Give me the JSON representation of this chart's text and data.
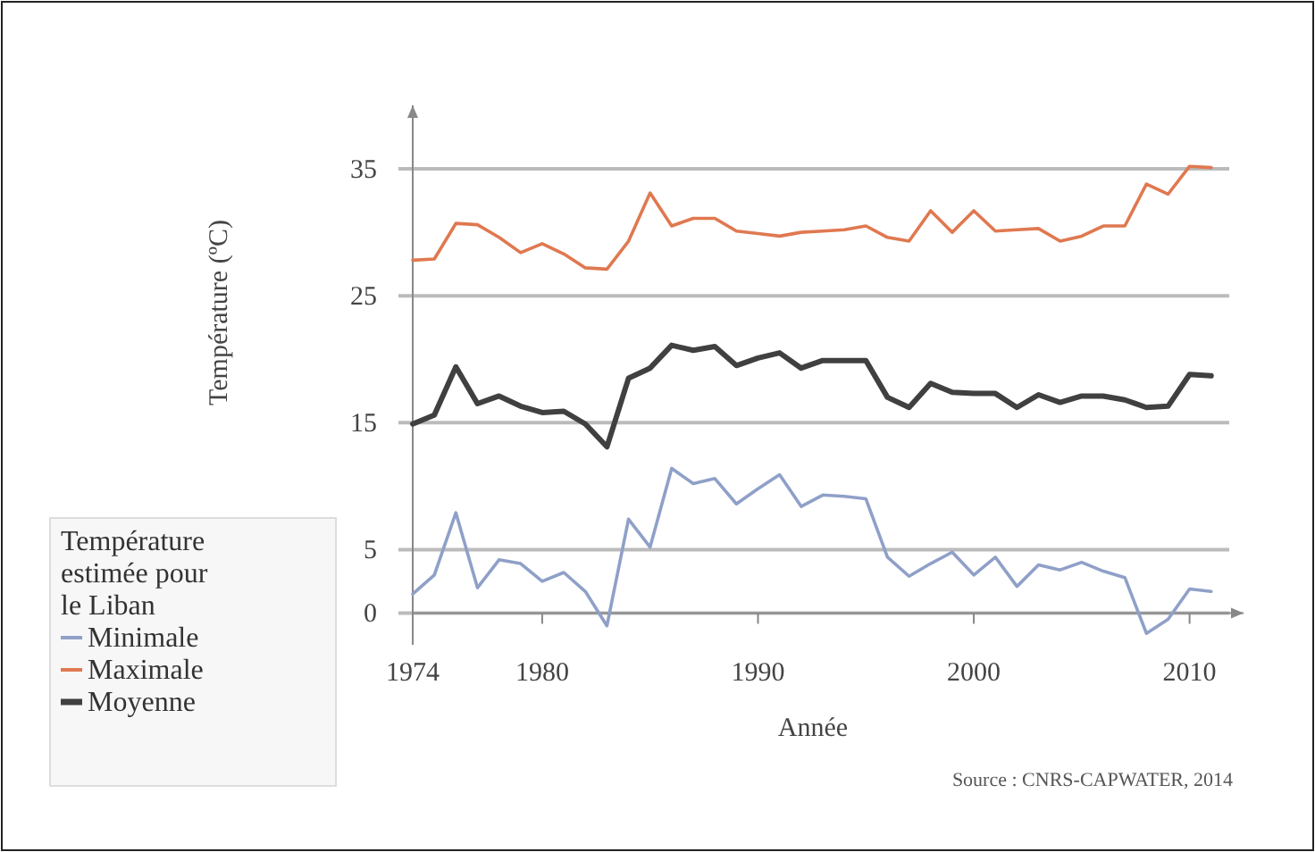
{
  "chart_data": {
    "type": "line",
    "ylabel": "Température (ºC)",
    "xlabel": "Année",
    "legend_title": "Température estimée pour le Liban",
    "annotations": [
      "Source : CNRS-CAPWATER, 2014"
    ],
    "x": [
      1974,
      1975,
      1976,
      1977,
      1978,
      1979,
      1980,
      1981,
      1982,
      1983,
      1984,
      1985,
      1986,
      1987,
      1988,
      1989,
      1990,
      1991,
      1992,
      1993,
      1994,
      1995,
      1996,
      1997,
      1998,
      1999,
      2000,
      2001,
      2002,
      2003,
      2004,
      2005,
      2006,
      2007,
      2008,
      2009,
      2010,
      2011
    ],
    "series": [
      {
        "name": "Minimale",
        "color": "#8fa0c8",
        "values": [
          1.5,
          3.0,
          7.9,
          2.0,
          4.2,
          3.9,
          2.5,
          3.2,
          1.7,
          -1.0,
          7.4,
          5.2,
          11.4,
          10.2,
          10.6,
          8.6,
          9.8,
          10.9,
          8.4,
          9.3,
          9.2,
          9.0,
          4.4,
          2.9,
          3.9,
          4.8,
          3.0,
          4.4,
          2.1,
          3.8,
          3.4,
          4.0,
          3.3,
          2.8,
          -1.6,
          -0.5,
          1.9,
          1.7
        ]
      },
      {
        "name": "Maximale",
        "color": "#e07850",
        "values": [
          27.8,
          27.9,
          30.7,
          30.6,
          29.6,
          28.4,
          29.1,
          28.3,
          27.2,
          27.1,
          29.3,
          33.1,
          30.5,
          31.1,
          31.1,
          30.1,
          29.9,
          29.7,
          30.0,
          30.1,
          30.2,
          30.5,
          29.6,
          29.3,
          31.7,
          30.0,
          31.7,
          30.1,
          30.2,
          30.3,
          29.3,
          29.7,
          30.5,
          30.5,
          33.8,
          33.0,
          35.2,
          35.1
        ]
      },
      {
        "name": "Moyenne",
        "color": "#404040",
        "values": [
          14.9,
          15.6,
          19.4,
          16.5,
          17.1,
          16.3,
          15.8,
          15.9,
          14.9,
          13.1,
          18.5,
          19.3,
          21.1,
          20.7,
          21.0,
          19.5,
          20.1,
          20.5,
          19.3,
          19.9,
          19.9,
          19.9,
          17.0,
          16.2,
          18.1,
          17.4,
          17.3,
          17.3,
          16.2,
          17.2,
          16.6,
          17.1,
          17.1,
          16.8,
          16.2,
          16.3,
          18.8,
          18.7
        ]
      }
    ],
    "xlim": [
      1974,
      2012.5
    ],
    "xticks": [
      1974,
      1980,
      1990,
      2000,
      2010
    ],
    "ylim": [
      -2.5,
      40
    ],
    "yticks": [
      0,
      5,
      15,
      25,
      35
    ],
    "grid": "y",
    "legend": "bottom left",
    "marker": "none",
    "line_style": "solid"
  }
}
